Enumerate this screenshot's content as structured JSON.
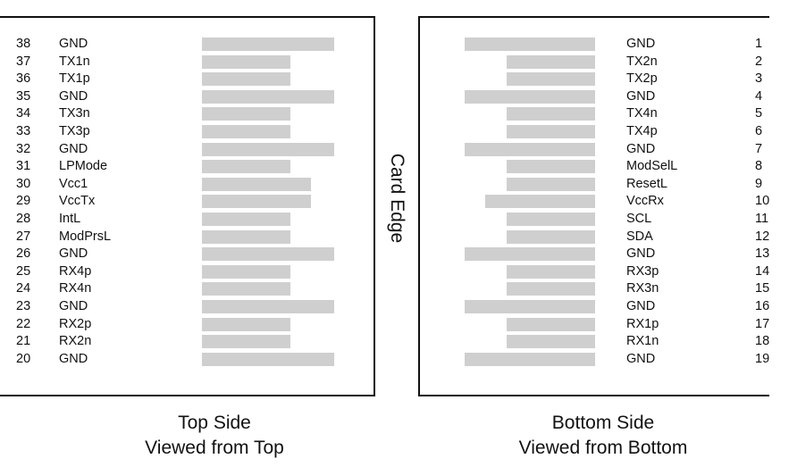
{
  "center_label": "Card Edge",
  "top_side": {
    "caption_line1": "Top Side",
    "caption_line2": "Viewed from Top",
    "pins": [
      {
        "num": "38",
        "name": "GND",
        "kind": "ground"
      },
      {
        "num": "37",
        "name": "TX1n",
        "kind": "signal"
      },
      {
        "num": "36",
        "name": "TX1p",
        "kind": "signal"
      },
      {
        "num": "35",
        "name": "GND",
        "kind": "ground"
      },
      {
        "num": "34",
        "name": "TX3n",
        "kind": "signal"
      },
      {
        "num": "33",
        "name": "TX3p",
        "kind": "signal"
      },
      {
        "num": "32",
        "name": "GND",
        "kind": "ground"
      },
      {
        "num": "31",
        "name": "LPMode",
        "kind": "signal"
      },
      {
        "num": "30",
        "name": "Vcc1",
        "kind": "power"
      },
      {
        "num": "29",
        "name": "VccTx",
        "kind": "power"
      },
      {
        "num": "28",
        "name": "IntL",
        "kind": "signal"
      },
      {
        "num": "27",
        "name": "ModPrsL",
        "kind": "signal"
      },
      {
        "num": "26",
        "name": "GND",
        "kind": "ground"
      },
      {
        "num": "25",
        "name": "RX4p",
        "kind": "signal"
      },
      {
        "num": "24",
        "name": "RX4n",
        "kind": "signal"
      },
      {
        "num": "23",
        "name": "GND",
        "kind": "ground"
      },
      {
        "num": "22",
        "name": "RX2p",
        "kind": "signal"
      },
      {
        "num": "21",
        "name": "RX2n",
        "kind": "signal"
      },
      {
        "num": "20",
        "name": "GND",
        "kind": "ground"
      }
    ]
  },
  "bottom_side": {
    "caption_line1": "Bottom Side",
    "caption_line2": "Viewed from Bottom",
    "pins": [
      {
        "num": "1",
        "name": "GND",
        "kind": "ground"
      },
      {
        "num": "2",
        "name": "TX2n",
        "kind": "signal"
      },
      {
        "num": "3",
        "name": "TX2p",
        "kind": "signal"
      },
      {
        "num": "4",
        "name": "GND",
        "kind": "ground"
      },
      {
        "num": "5",
        "name": "TX4n",
        "kind": "signal"
      },
      {
        "num": "6",
        "name": "TX4p",
        "kind": "signal"
      },
      {
        "num": "7",
        "name": "GND",
        "kind": "ground"
      },
      {
        "num": "8",
        "name": "ModSelL",
        "kind": "signal"
      },
      {
        "num": "9",
        "name": "ResetL",
        "kind": "signal"
      },
      {
        "num": "10",
        "name": "VccRx",
        "kind": "power"
      },
      {
        "num": "11",
        "name": "SCL",
        "kind": "signal"
      },
      {
        "num": "12",
        "name": "SDA",
        "kind": "signal"
      },
      {
        "num": "13",
        "name": "GND",
        "kind": "ground"
      },
      {
        "num": "14",
        "name": "RX3p",
        "kind": "signal"
      },
      {
        "num": "15",
        "name": "RX3n",
        "kind": "signal"
      },
      {
        "num": "16",
        "name": "GND",
        "kind": "ground"
      },
      {
        "num": "17",
        "name": "RX1p",
        "kind": "signal"
      },
      {
        "num": "18",
        "name": "RX1n",
        "kind": "signal"
      },
      {
        "num": "19",
        "name": "GND",
        "kind": "ground"
      }
    ]
  },
  "colors": {
    "pad": "#cfcfcf",
    "frame": "#111111",
    "text": "#111111"
  }
}
